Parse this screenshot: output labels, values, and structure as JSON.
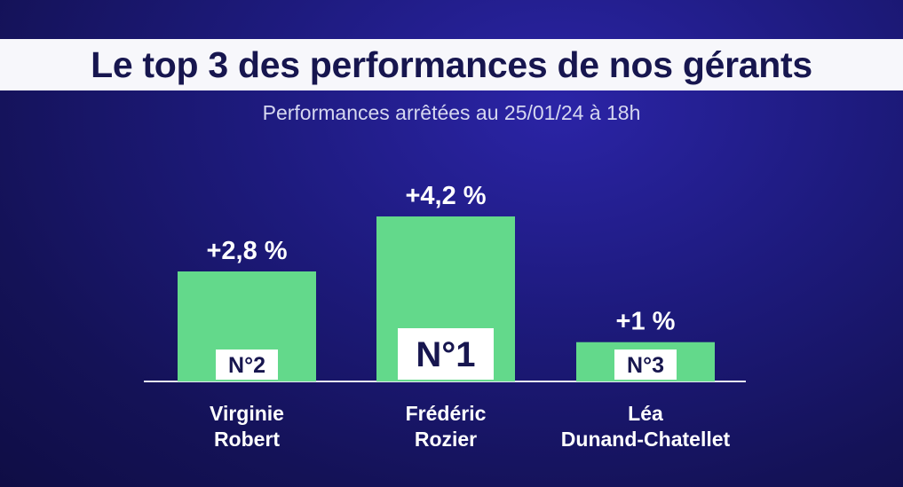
{
  "chart_data": {
    "type": "bar",
    "title": "Le top 3 des performances de nos gérants",
    "subtitle": "Performances arrêtées au 25/01/24 à 18h",
    "categories": [
      "Virginie Robert",
      "Frédéric Rozier",
      "Léa Dunand-Chatellet"
    ],
    "category_lines": [
      [
        "Virginie",
        "Robert"
      ],
      [
        "Frédéric",
        "Rozier"
      ],
      [
        "Léa",
        "Dunand-Chatellet"
      ]
    ],
    "values": [
      2.8,
      4.2,
      1.0
    ],
    "value_labels": [
      "+2,8 %",
      "+4,2 %",
      "+1 %"
    ],
    "ranks": [
      "N°2",
      "N°1",
      "N°3"
    ],
    "ylim": [
      0,
      4.2
    ],
    "bar_color": "#63d98b",
    "grid": false,
    "legend": "none"
  }
}
